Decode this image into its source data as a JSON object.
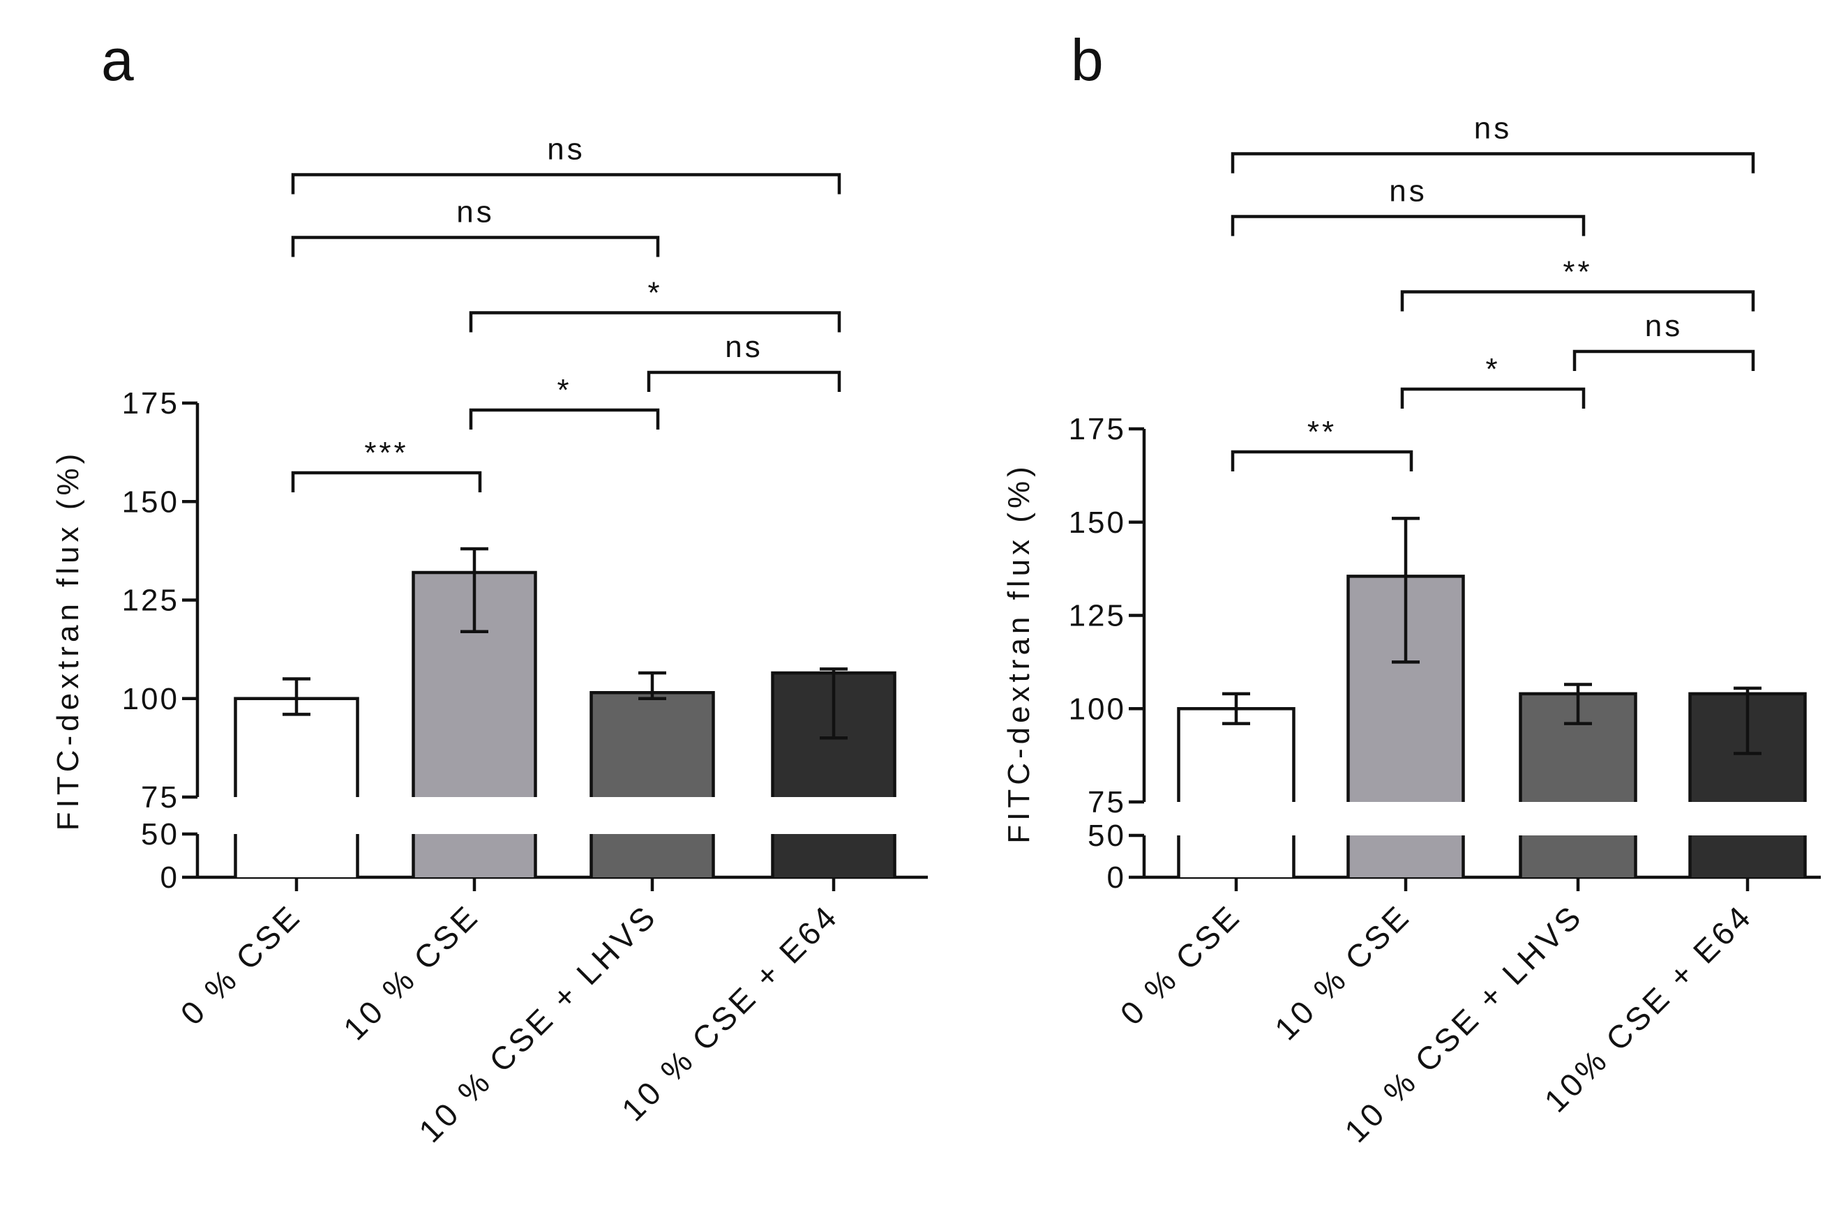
{
  "chart_data": [
    {
      "type": "bar",
      "panel": "a",
      "ylabel": "FITC-dextran flux (%)",
      "axis_break": true,
      "ylim_lower": [
        0,
        50
      ],
      "ylim_upper": [
        75,
        175
      ],
      "yticks_upper": [
        "75",
        "100",
        "125",
        "150",
        "175"
      ],
      "yticks_lower": [
        "0",
        "50"
      ],
      "categories": [
        "0 % CSE",
        "10 % CSE",
        "10 % CSE + LHVS",
        "10 % CSE + E64"
      ],
      "values": [
        100,
        132,
        101.5,
        106.5
      ],
      "err_low": [
        96,
        117,
        100,
        90
      ],
      "err_high": [
        105,
        138,
        106.5,
        107.5
      ],
      "bar_colors": [
        "#ffffff",
        "#a19fa6",
        "#626262",
        "#2f2f2f"
      ],
      "comparisons": [
        {
          "from": 0,
          "to": 1,
          "label": "***"
        },
        {
          "from": 1,
          "to": 2,
          "label": "*"
        },
        {
          "from": 2,
          "to": 3,
          "label": "ns"
        },
        {
          "from": 1,
          "to": 3,
          "label": "*"
        },
        {
          "from": 0,
          "to": 2,
          "label": "ns"
        },
        {
          "from": 0,
          "to": 3,
          "label": "ns"
        }
      ]
    },
    {
      "type": "bar",
      "panel": "b",
      "ylabel": "FITC-dextran flux (%)",
      "axis_break": true,
      "ylim_lower": [
        0,
        50
      ],
      "ylim_upper": [
        75,
        175
      ],
      "yticks_upper": [
        "75",
        "100",
        "125",
        "150",
        "175"
      ],
      "yticks_lower": [
        "0",
        "50"
      ],
      "categories": [
        "0 % CSE",
        "10 % CSE",
        "10 % CSE + LHVS",
        "10% CSE + E64"
      ],
      "values": [
        100,
        135.5,
        104,
        104
      ],
      "err_low": [
        96,
        112.5,
        96,
        88
      ],
      "err_high": [
        104,
        151,
        106.5,
        105.5
      ],
      "bar_colors": [
        "#ffffff",
        "#a19fa6",
        "#626262",
        "#2f2f2f"
      ],
      "comparisons": [
        {
          "from": 0,
          "to": 1,
          "label": "**"
        },
        {
          "from": 1,
          "to": 2,
          "label": "*"
        },
        {
          "from": 2,
          "to": 3,
          "label": "ns"
        },
        {
          "from": 1,
          "to": 3,
          "label": "**"
        },
        {
          "from": 0,
          "to": 2,
          "label": "ns"
        },
        {
          "from": 0,
          "to": 3,
          "label": "ns"
        }
      ]
    }
  ]
}
